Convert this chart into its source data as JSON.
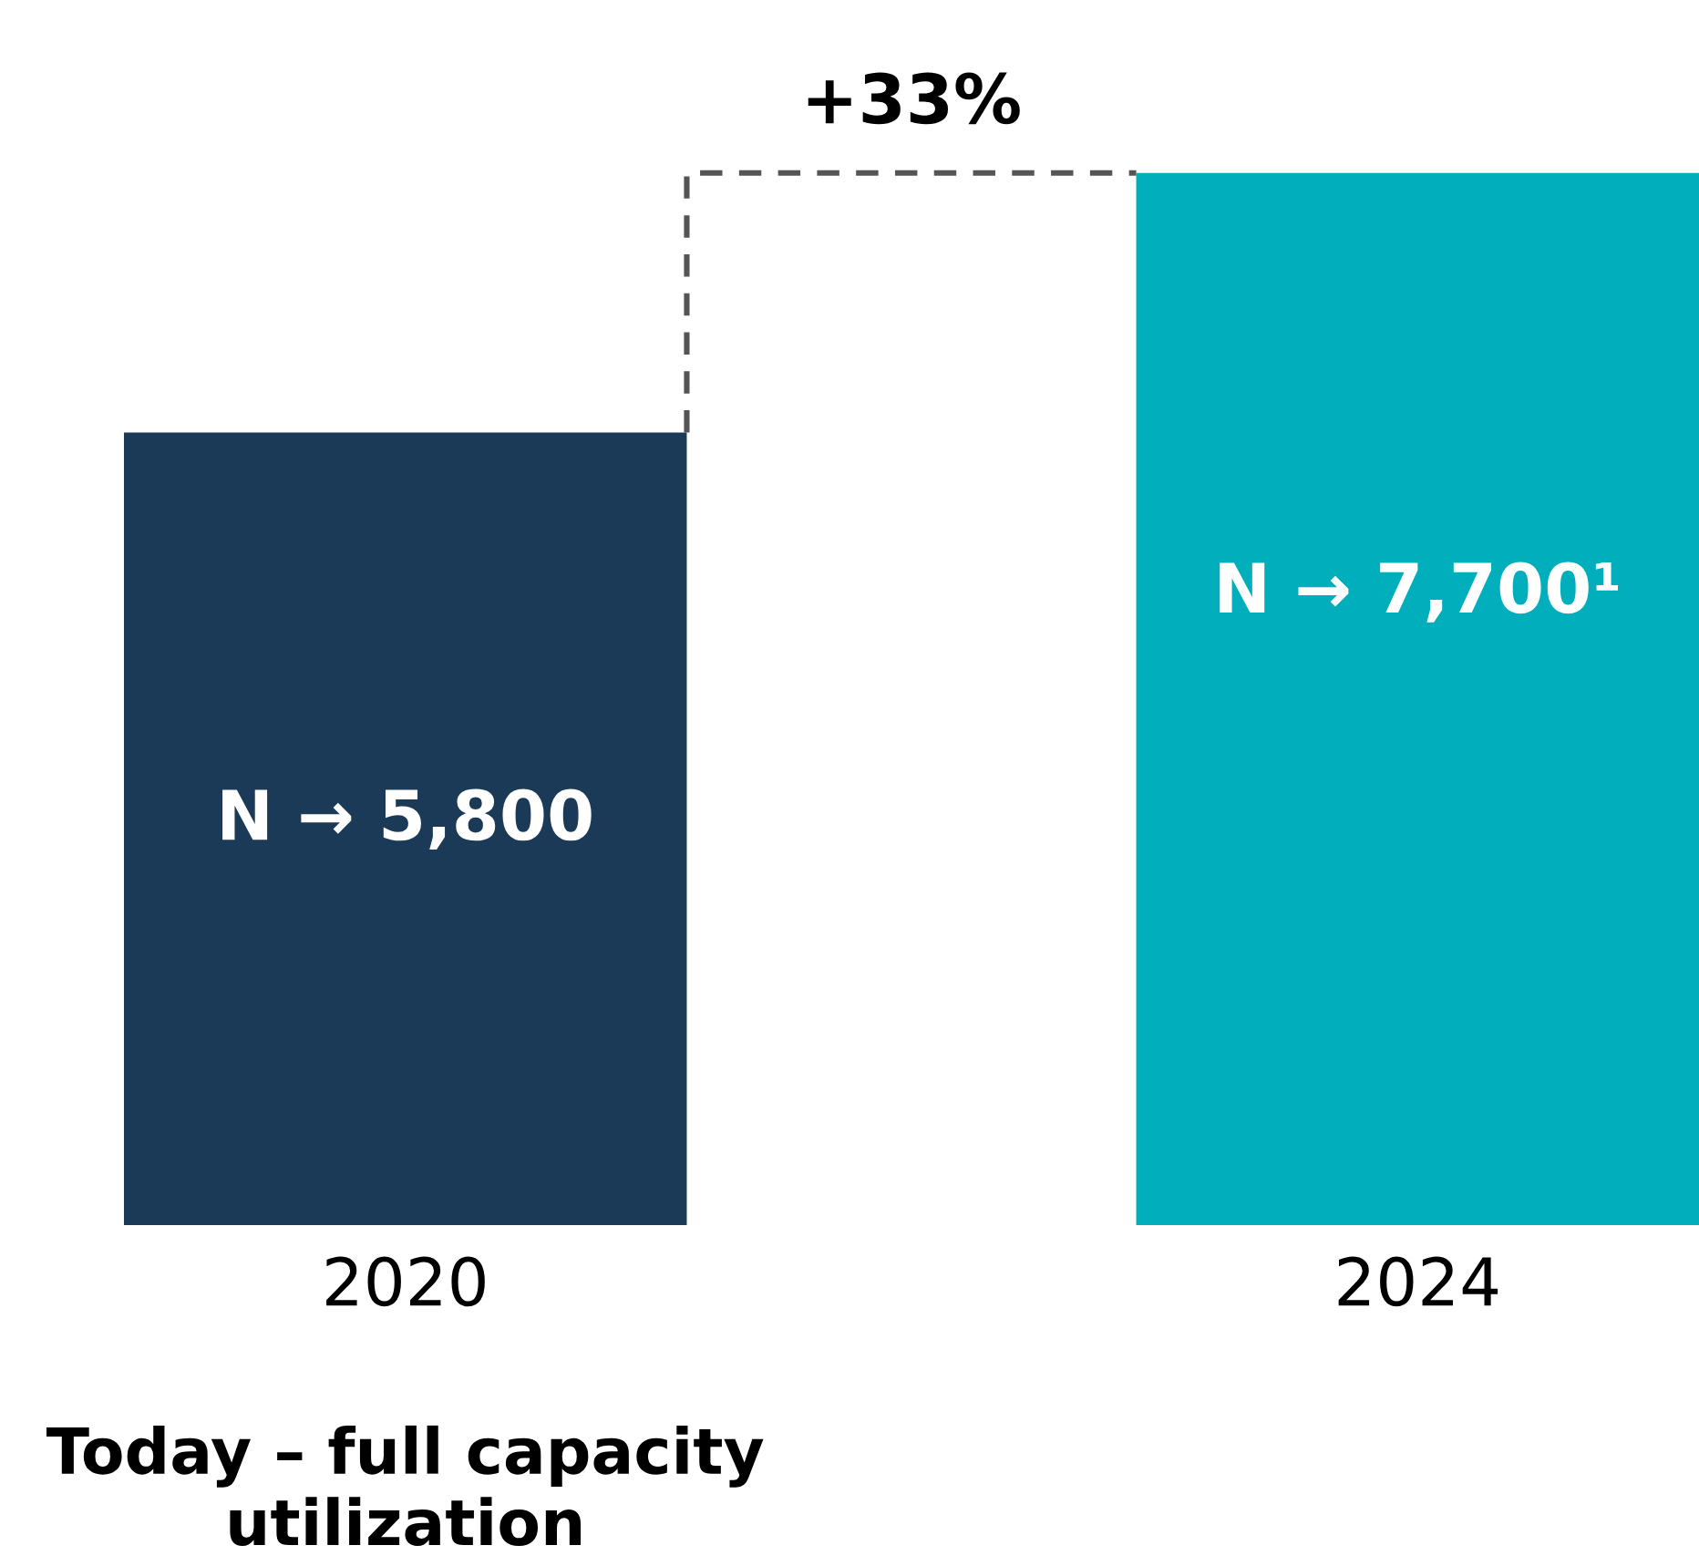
{
  "chart_data": {
    "type": "bar",
    "categories": [
      "2020",
      "2024"
    ],
    "values": [
      5800,
      7700
    ],
    "colors": [
      "#1b3a57",
      "#00afbb"
    ],
    "value_labels": [
      "N → 5,800",
      "N → 7,700¹"
    ],
    "annotations": [
      "+33%",
      "Today – full capacity utilization"
    ],
    "tick_labels": "x",
    "grid": false,
    "legend": false
  }
}
